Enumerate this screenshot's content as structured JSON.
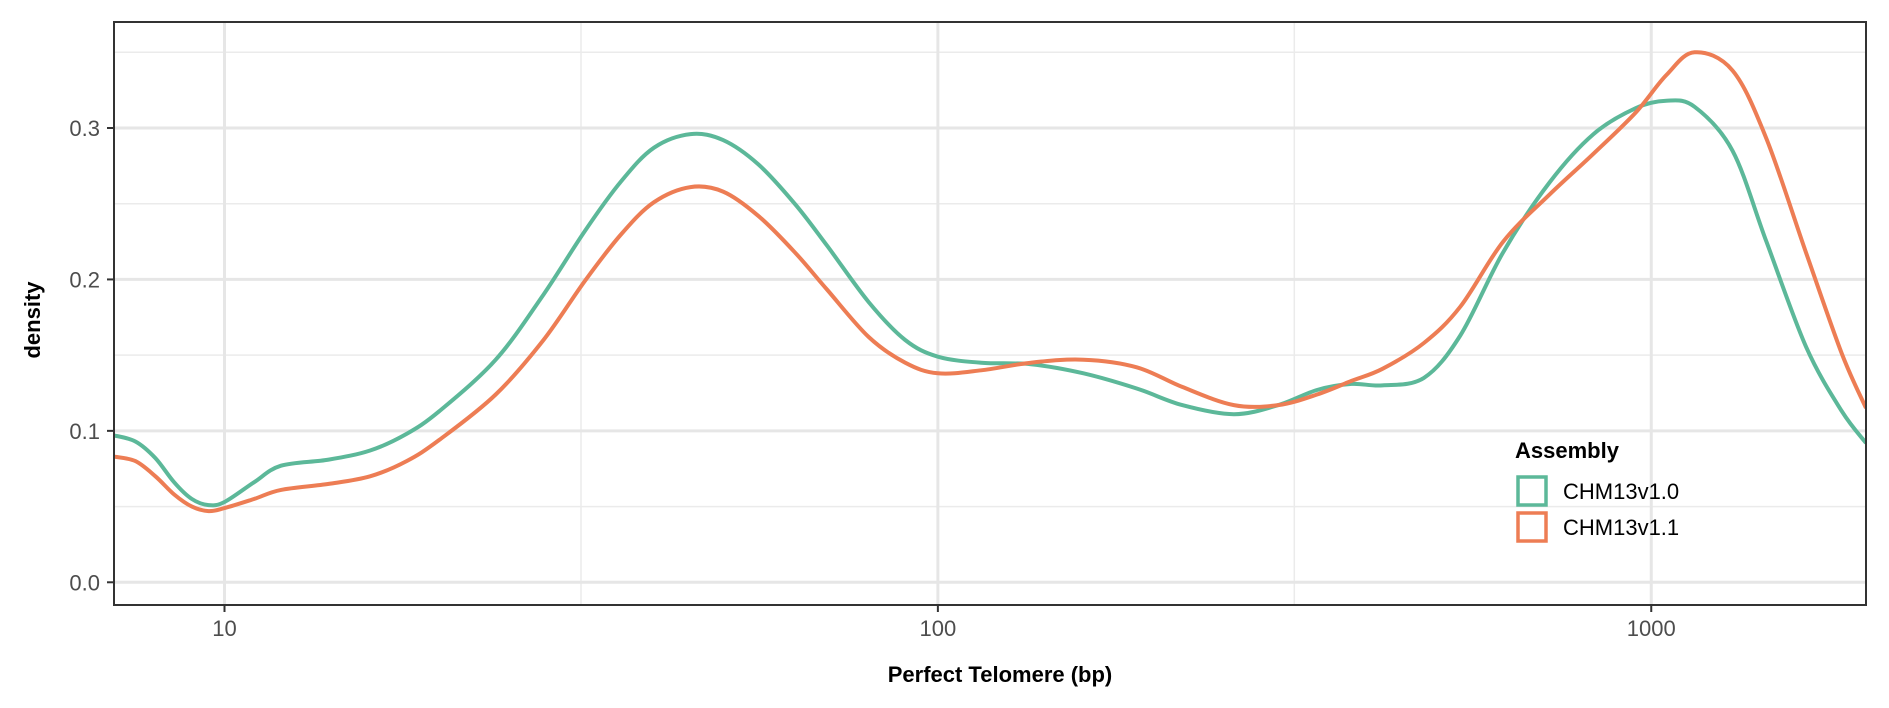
{
  "chart_data": {
    "type": "line",
    "xscale": "log",
    "xlim": [
      7.0,
      2000
    ],
    "ylim": [
      -0.015,
      0.37
    ],
    "xlabel": "Perfect Telomere (bp)",
    "ylabel": "density",
    "x_ticks": [
      {
        "value": 10,
        "label": "10"
      },
      {
        "value": 100,
        "label": "100"
      },
      {
        "value": 1000,
        "label": "1000"
      }
    ],
    "x_minor_ticks": [
      31.6,
      316
    ],
    "y_ticks": [
      {
        "value": 0.0,
        "label": "0.0"
      },
      {
        "value": 0.1,
        "label": "0.1"
      },
      {
        "value": 0.2,
        "label": "0.2"
      },
      {
        "value": 0.3,
        "label": "0.3"
      }
    ],
    "y_minor_ticks": [
      0.05,
      0.15,
      0.25,
      0.35
    ],
    "grid": true,
    "legend": {
      "title": "Assembly",
      "position": "bottom-right"
    },
    "series": [
      {
        "name": "CHM13v1.0",
        "color": "#5cb899",
        "points": [
          [
            7.0,
            0.097
          ],
          [
            7.5,
            0.093
          ],
          [
            8.0,
            0.082
          ],
          [
            8.5,
            0.066
          ],
          [
            9.0,
            0.055
          ],
          [
            9.5,
            0.051
          ],
          [
            10.0,
            0.053
          ],
          [
            11.0,
            0.066
          ],
          [
            12.0,
            0.077
          ],
          [
            14.0,
            0.081
          ],
          [
            16.0,
            0.087
          ],
          [
            18.0,
            0.098
          ],
          [
            20.0,
            0.113
          ],
          [
            24.0,
            0.147
          ],
          [
            28.0,
            0.19
          ],
          [
            32.0,
            0.232
          ],
          [
            36.0,
            0.265
          ],
          [
            40.0,
            0.287
          ],
          [
            45.0,
            0.296
          ],
          [
            50.0,
            0.292
          ],
          [
            56.0,
            0.276
          ],
          [
            63.0,
            0.25
          ],
          [
            70.0,
            0.222
          ],
          [
            80.0,
            0.185
          ],
          [
            90.0,
            0.16
          ],
          [
            100.0,
            0.149
          ],
          [
            115.0,
            0.145
          ],
          [
            135.0,
            0.144
          ],
          [
            160.0,
            0.138
          ],
          [
            190.0,
            0.128
          ],
          [
            220.0,
            0.117
          ],
          [
            260.0,
            0.111
          ],
          [
            300.0,
            0.117
          ],
          [
            340.0,
            0.127
          ],
          [
            380.0,
            0.131
          ],
          [
            420.0,
            0.13
          ],
          [
            480.0,
            0.135
          ],
          [
            540.0,
            0.163
          ],
          [
            620.0,
            0.218
          ],
          [
            720.0,
            0.264
          ],
          [
            830.0,
            0.296
          ],
          [
            950.0,
            0.313
          ],
          [
            1050.0,
            0.318
          ],
          [
            1150.0,
            0.314
          ],
          [
            1300.0,
            0.285
          ],
          [
            1450.0,
            0.225
          ],
          [
            1650.0,
            0.155
          ],
          [
            1850.0,
            0.113
          ],
          [
            2000.0,
            0.092
          ]
        ]
      },
      {
        "name": "CHM13v1.1",
        "color": "#ed7d54",
        "points": [
          [
            7.0,
            0.083
          ],
          [
            7.5,
            0.08
          ],
          [
            8.0,
            0.07
          ],
          [
            8.5,
            0.058
          ],
          [
            9.0,
            0.05
          ],
          [
            9.5,
            0.047
          ],
          [
            10.0,
            0.049
          ],
          [
            11.0,
            0.055
          ],
          [
            12.0,
            0.061
          ],
          [
            14.0,
            0.065
          ],
          [
            16.0,
            0.07
          ],
          [
            18.0,
            0.08
          ],
          [
            20.0,
            0.094
          ],
          [
            24.0,
            0.124
          ],
          [
            28.0,
            0.16
          ],
          [
            32.0,
            0.199
          ],
          [
            36.0,
            0.23
          ],
          [
            40.0,
            0.251
          ],
          [
            45.0,
            0.261
          ],
          [
            50.0,
            0.258
          ],
          [
            56.0,
            0.242
          ],
          [
            63.0,
            0.218
          ],
          [
            70.0,
            0.193
          ],
          [
            80.0,
            0.162
          ],
          [
            90.0,
            0.145
          ],
          [
            100.0,
            0.138
          ],
          [
            115.0,
            0.14
          ],
          [
            135.0,
            0.145
          ],
          [
            160.0,
            0.147
          ],
          [
            190.0,
            0.142
          ],
          [
            220.0,
            0.129
          ],
          [
            260.0,
            0.117
          ],
          [
            300.0,
            0.117
          ],
          [
            340.0,
            0.124
          ],
          [
            380.0,
            0.133
          ],
          [
            420.0,
            0.141
          ],
          [
            480.0,
            0.158
          ],
          [
            540.0,
            0.182
          ],
          [
            620.0,
            0.225
          ],
          [
            720.0,
            0.256
          ],
          [
            830.0,
            0.283
          ],
          [
            950.0,
            0.31
          ],
          [
            1050.0,
            0.335
          ],
          [
            1150.0,
            0.35
          ],
          [
            1300.0,
            0.338
          ],
          [
            1450.0,
            0.293
          ],
          [
            1650.0,
            0.217
          ],
          [
            1850.0,
            0.151
          ],
          [
            2000.0,
            0.115
          ]
        ]
      }
    ]
  }
}
